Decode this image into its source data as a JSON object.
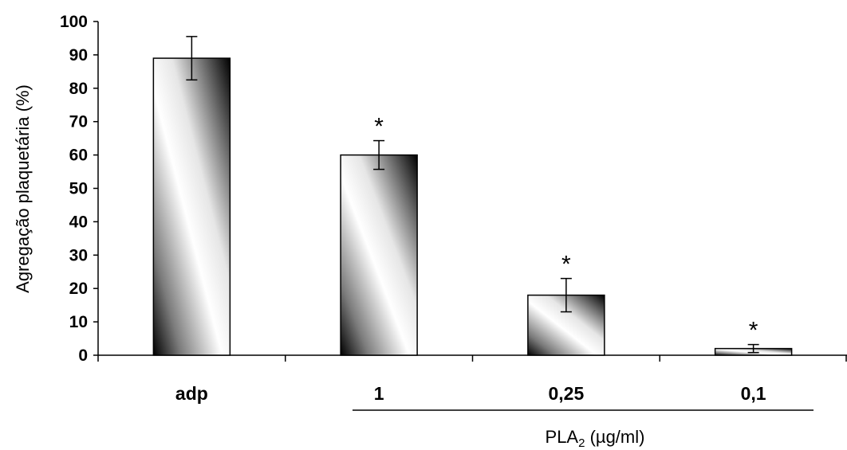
{
  "chart_data": {
    "type": "bar",
    "categories": [
      "adp",
      "1",
      "0,25",
      "0,1"
    ],
    "values": [
      89,
      60,
      18,
      2
    ],
    "errors": [
      6.5,
      4.3,
      5.0,
      1.2
    ],
    "significance": [
      "",
      "*",
      "*",
      "*"
    ],
    "ylabel": "Agregação plaquetária (%)",
    "ylim": [
      0,
      100
    ],
    "yticks": [
      0,
      10,
      20,
      30,
      40,
      50,
      60,
      70,
      80,
      90,
      100
    ],
    "group_label": {
      "main": "PLA",
      "subscript": "2",
      "suffix": " (µg/ml)",
      "spans_categories": [
        "1",
        "0,25",
        "0,1"
      ]
    },
    "grid": false,
    "legend": "none"
  }
}
